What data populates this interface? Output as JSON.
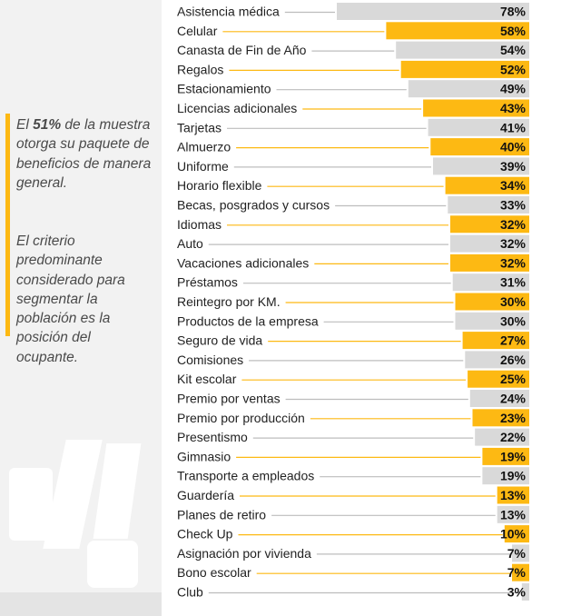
{
  "side_note": {
    "line1_prefix": "El ",
    "line1_highlight": "51%",
    "line1_rest": " de la muestra otorga su paquete de beneficios de manera general.",
    "line2": "El criterio predominante considerado para segmentar la población es la posición del ocupante."
  },
  "colors": {
    "highlight": "#fdb913",
    "gray": "#d9d9d9",
    "accent": "#fdb913"
  },
  "chart_data": {
    "type": "bar",
    "orientation": "horizontal",
    "categories": [
      "Asistencia médica",
      "Celular",
      "Canasta de Fin de Año",
      "Regalos",
      "Estacionamiento",
      "Licencias adicionales",
      "Tarjetas",
      "Almuerzo",
      "Uniforme",
      "Horario flexible",
      "Becas, posgrados y cursos",
      "Idiomas",
      "Auto",
      "Vacaciones adicionales",
      "Préstamos",
      "Reintegro por KM.",
      "Productos de la empresa",
      "Seguro de vida",
      "Comisiones",
      "Kit escolar",
      "Premio por ventas",
      "Premio por producción",
      "Presentismo",
      "Gimnasio",
      "Transporte a empleados",
      "Guardería",
      "Planes de retiro",
      "Check Up",
      "Asignación por vivienda",
      "Bono escolar",
      "Club"
    ],
    "values": [
      78,
      58,
      54,
      52,
      49,
      43,
      41,
      40,
      39,
      34,
      33,
      32,
      32,
      32,
      31,
      30,
      30,
      27,
      26,
      25,
      24,
      23,
      22,
      19,
      19,
      13,
      13,
      10,
      7,
      7,
      3
    ],
    "value_labels": [
      "78%",
      "58%",
      "54%",
      "52%",
      "49%",
      "43%",
      "41%",
      "40%",
      "39%",
      "34%",
      "33%",
      "32%",
      "32%",
      "32%",
      "31%",
      "30%",
      "30%",
      "27%",
      "26%",
      "25%",
      "24%",
      "23%",
      "22%",
      "19%",
      "19%",
      "13%",
      "13%",
      "10%",
      "7%",
      "7%",
      "3%"
    ],
    "highlighted": [
      false,
      true,
      false,
      true,
      false,
      true,
      false,
      true,
      false,
      true,
      false,
      true,
      false,
      true,
      false,
      true,
      false,
      true,
      false,
      true,
      false,
      true,
      false,
      true,
      false,
      true,
      false,
      true,
      false,
      true,
      false
    ],
    "xlim": [
      0,
      78
    ],
    "grid": false,
    "legend": "none"
  }
}
